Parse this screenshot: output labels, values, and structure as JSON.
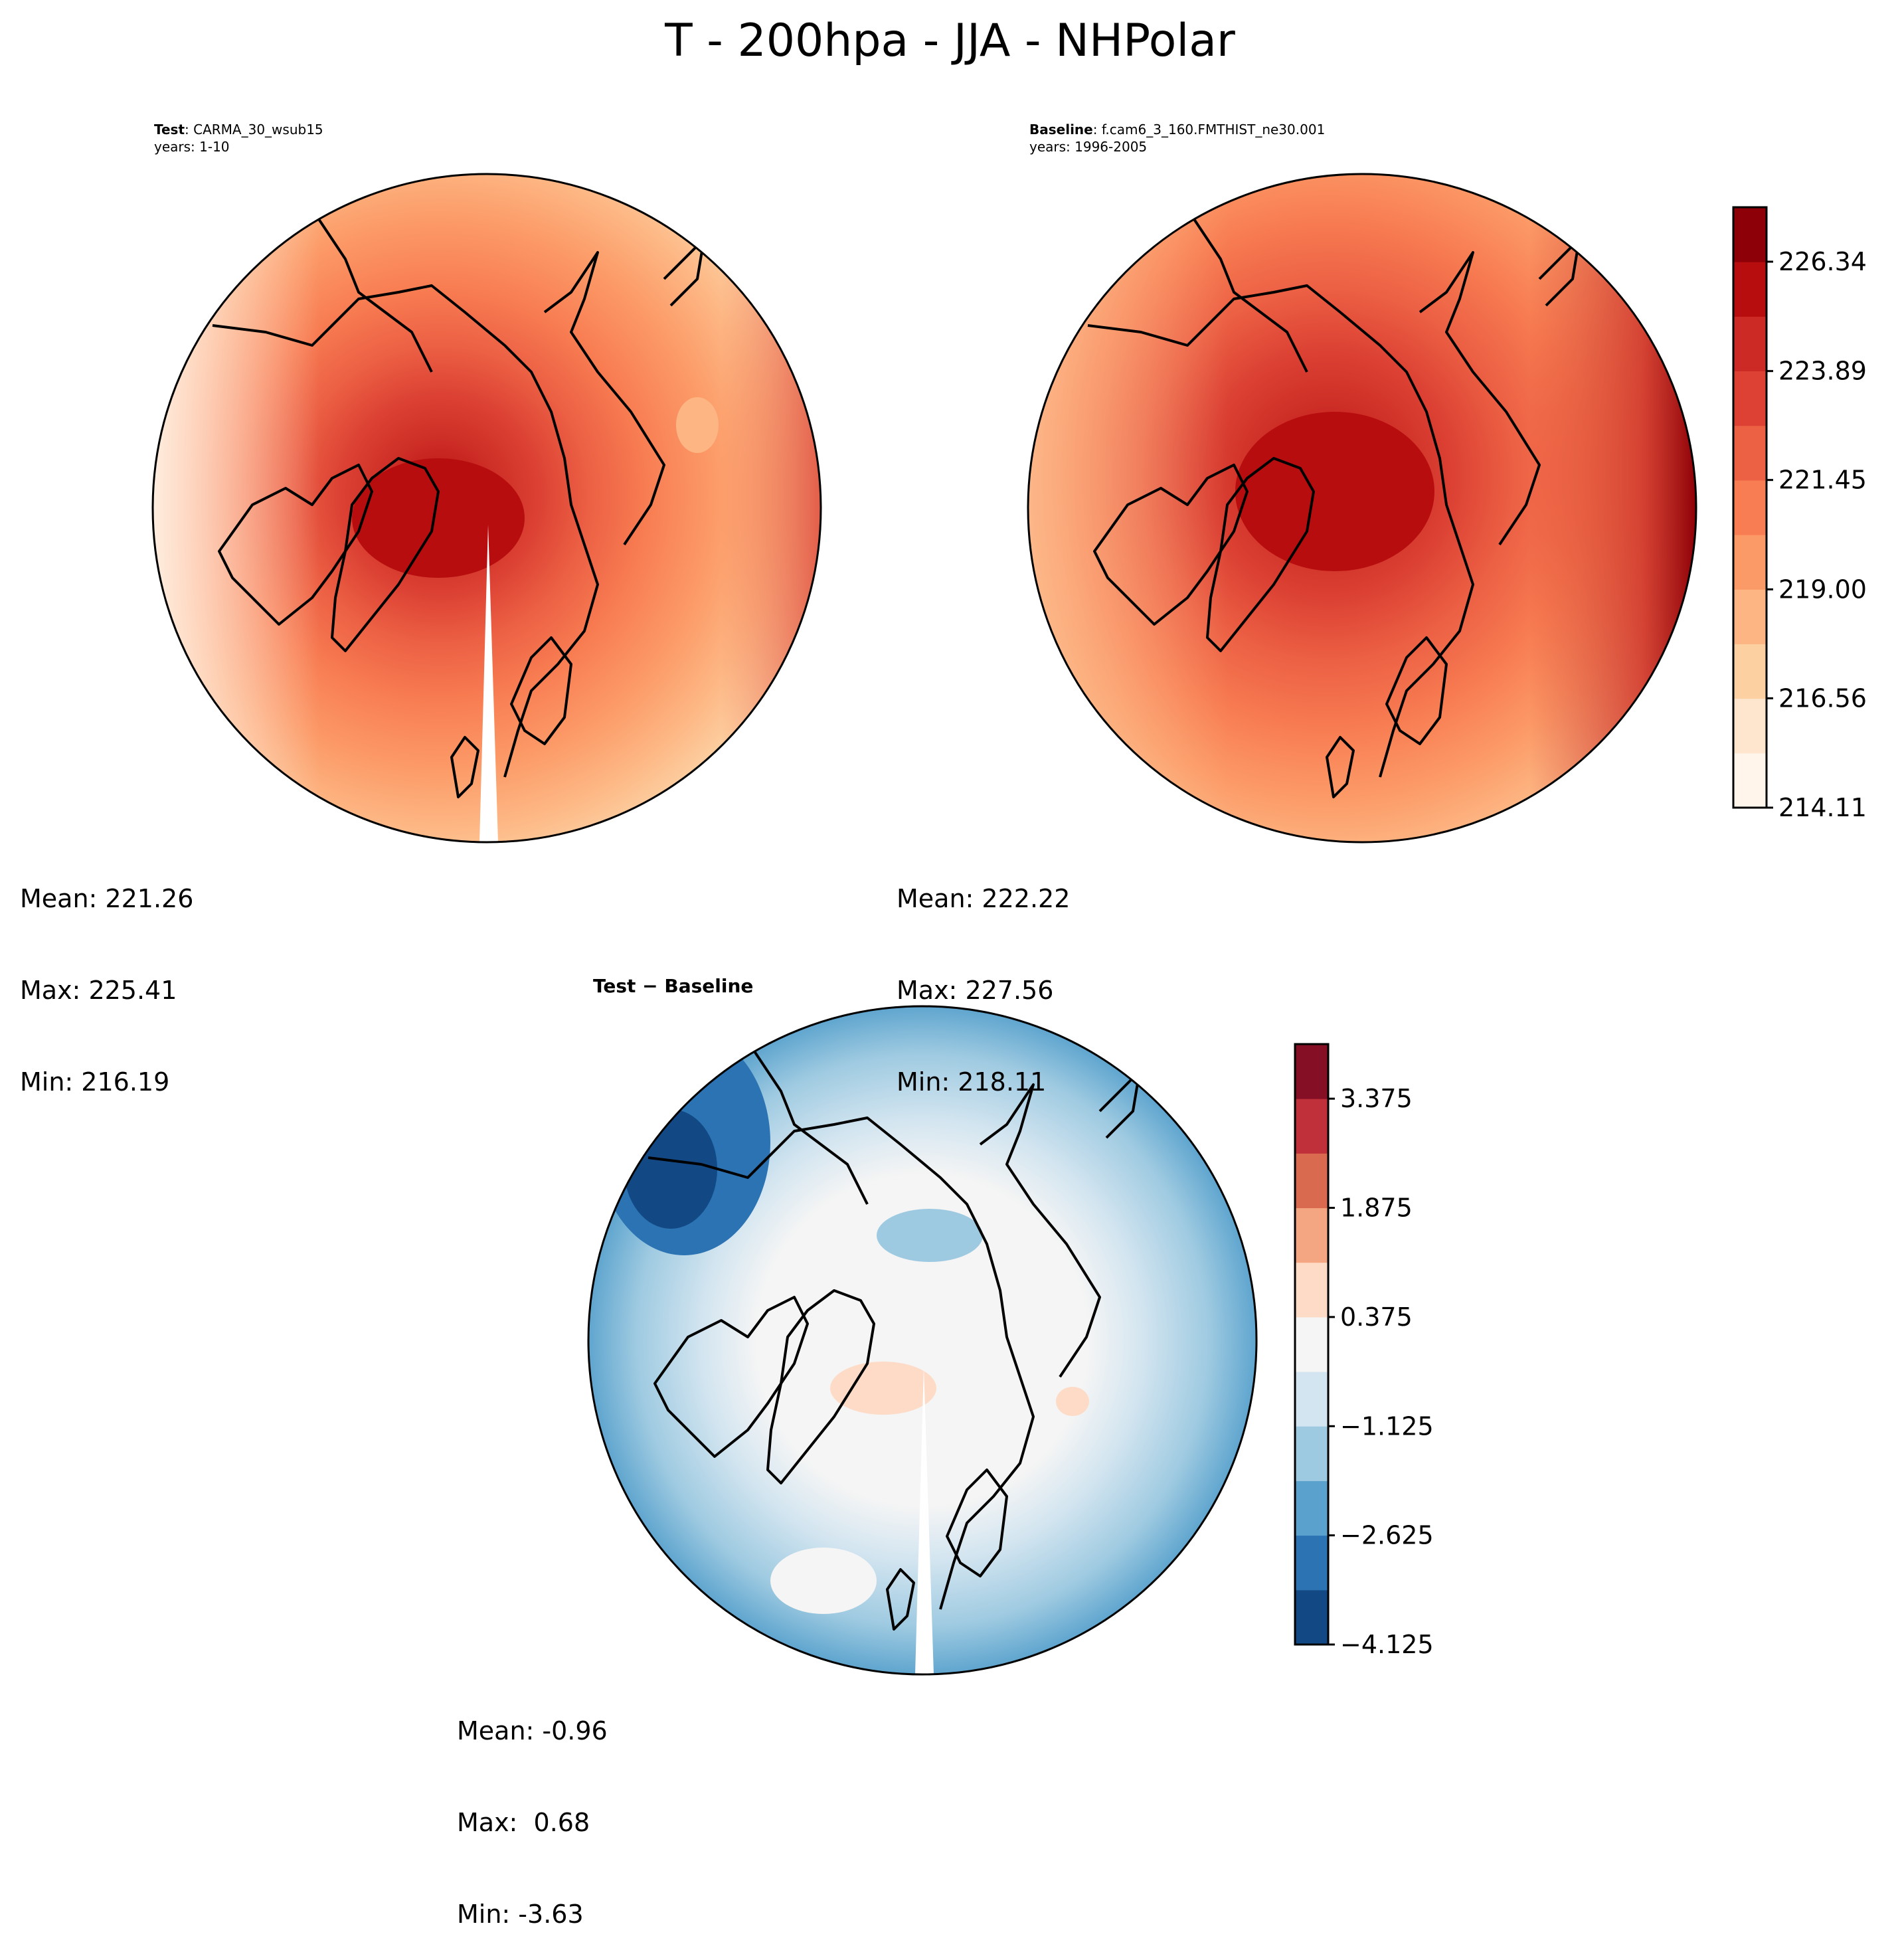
{
  "figure": {
    "title": "T - 200hpa - JJA - NHPolar"
  },
  "panels": {
    "test": {
      "label_bold": "Test",
      "case": "CARMA_30_wsub15",
      "years": "years: 1-10",
      "mean": "Mean: 221.26",
      "max": "Max: 225.41",
      "min": "Min: 216.19"
    },
    "baseline": {
      "label_bold": "Baseline",
      "case": "f.cam6_3_160.FMTHIST_ne30.001",
      "years": "years: 1996-2005",
      "mean": "Mean: 222.22",
      "max": "Max: 227.56",
      "min": "Min: 218.11"
    },
    "diff": {
      "title": "Test − Baseline",
      "mean": "Mean: -0.96",
      "max": "Max:  0.68",
      "min": "Min: -3.63"
    }
  },
  "chart_data": [
    {
      "type": "heatmap",
      "name": "test",
      "projection": "north-polar-stereographic",
      "title": "Test : CARMA_30_wsub15",
      "subtitle": "years: 1-10",
      "stats": {
        "mean": 221.26,
        "max": 225.41,
        "min": 216.19
      },
      "colormap": "Reds",
      "colorbar": "shared-with-baseline"
    },
    {
      "type": "heatmap",
      "name": "baseline",
      "projection": "north-polar-stereographic",
      "title": "Baseline : f.cam6_3_160.FMTHIST_ne30.001",
      "subtitle": "years: 1996-2005",
      "stats": {
        "mean": 222.22,
        "max": 227.56,
        "min": 218.11
      },
      "colormap": "Reds",
      "colorbar": {
        "min": 214.11,
        "max": 227.56,
        "ticks": [
          "214.11",
          "216.56",
          "219.00",
          "221.45",
          "223.89",
          "226.34"
        ],
        "tick_values": [
          214.11,
          216.56,
          219.0,
          221.45,
          223.89,
          226.34
        ],
        "colors": [
          "#fff5eb",
          "#fee6ce",
          "#fdd0a2",
          "#fdb683",
          "#fc9a67",
          "#f87d52",
          "#ec6044",
          "#dc4133",
          "#cb2b24",
          "#b70d0e",
          "#8e0007"
        ]
      }
    },
    {
      "type": "heatmap",
      "name": "difference",
      "projection": "north-polar-stereographic",
      "title": "Test − Baseline",
      "stats": {
        "mean": -0.96,
        "max": 0.68,
        "min": -3.63
      },
      "colormap": "RdBu_r",
      "colorbar": {
        "min": -4.125,
        "max": 4.125,
        "ticks": [
          "−4.125",
          "−2.625",
          "−1.125",
          "0.375",
          "1.875",
          "3.375"
        ],
        "tick_values": [
          -4.125,
          -2.625,
          -1.125,
          0.375,
          1.875,
          3.375
        ],
        "colors": [
          "#124984",
          "#2b73b3",
          "#5aa2cd",
          "#9ecae1",
          "#d3e5f0",
          "#f5f5f5",
          "#fddbc7",
          "#f4a683",
          "#d9694f",
          "#bf303a",
          "#850f25"
        ]
      }
    }
  ]
}
